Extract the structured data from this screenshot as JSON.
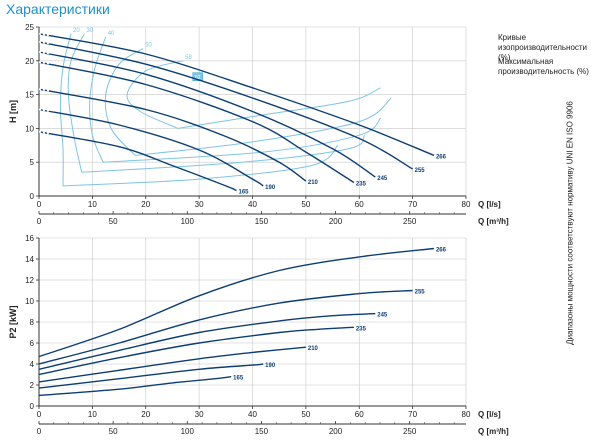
{
  "page": {
    "title": "Характеристики",
    "legend_iso_efficiency": [
      "Кривые",
      "изопроизводительности (%)"
    ],
    "legend_max_efficiency": [
      "Максимальная",
      "производительность (%)"
    ],
    "side_note": "Диапазоны мощности соответствуют нормативу UNI EN ISO 9906",
    "colors": {
      "title": "#1f8fc9",
      "curve": "#0d3e73",
      "label": "#0d3e73",
      "efficiency": "#7ec4e4",
      "grid": "#c8c8c8",
      "axis": "#333333"
    }
  },
  "chart_data": [
    {
      "type": "line",
      "id": "head",
      "ylabel": "H [m]",
      "xlabel_primary": "Q [l/s]",
      "xlabel_secondary": "Q [m³/h]",
      "xlim": [
        0,
        80
      ],
      "ylim": [
        0,
        25
      ],
      "x_ticks": [
        "0",
        "10",
        "20",
        "30",
        "40",
        "50",
        "60",
        "70",
        "80"
      ],
      "y_ticks": [
        "0",
        "5",
        "10",
        "15",
        "20",
        "25"
      ],
      "secondary_ticks": [
        "0",
        "50",
        "100",
        "150",
        "200",
        "250"
      ],
      "grid": true,
      "series": [
        {
          "name": "266",
          "x": [
            0,
            20,
            40,
            60,
            74
          ],
          "y": [
            24.0,
            21.0,
            16.0,
            10.5,
            6.0
          ]
        },
        {
          "name": "255",
          "x": [
            0,
            20,
            40,
            60,
            70
          ],
          "y": [
            22.8,
            19.5,
            14.5,
            8.5,
            4.0
          ]
        },
        {
          "name": "245",
          "x": [
            0,
            20,
            40,
            55,
            63
          ],
          "y": [
            21.3,
            18.0,
            12.5,
            7.0,
            2.8
          ]
        },
        {
          "name": "235",
          "x": [
            0,
            20,
            40,
            50,
            59
          ],
          "y": [
            19.8,
            16.5,
            11.0,
            6.5,
            2.0
          ]
        },
        {
          "name": "210",
          "x": [
            0,
            20,
            35,
            45,
            50
          ],
          "y": [
            15.8,
            12.8,
            8.8,
            5.0,
            2.2
          ]
        },
        {
          "name": "190",
          "x": [
            0,
            15,
            30,
            40,
            42
          ],
          "y": [
            12.8,
            10.5,
            6.8,
            2.5,
            1.5
          ]
        },
        {
          "name": "165",
          "x": [
            0,
            15,
            25,
            35,
            37
          ],
          "y": [
            9.5,
            7.3,
            4.5,
            1.5,
            0.8
          ]
        }
      ],
      "efficiency_curves": [
        {
          "label": "20",
          "x": [
            6.0,
            4.5,
            4.0,
            4.5,
            4.5
          ],
          "y": [
            24.0,
            19.0,
            13.0,
            7.0,
            1.5
          ]
        },
        {
          "label": "30",
          "x": [
            8.5,
            6.0,
            5.5,
            6.5,
            8.0
          ],
          "y": [
            24.0,
            20.0,
            15.0,
            9.0,
            3.5
          ]
        },
        {
          "label": "40",
          "x": [
            12.5,
            10.5,
            9.5,
            10.0,
            12.0
          ],
          "y": [
            23.5,
            19.0,
            14.0,
            9.0,
            5.0
          ]
        },
        {
          "label": "50",
          "x": [
            19.5,
            15.0,
            12.5,
            13.5,
            18.0
          ],
          "y": [
            21.8,
            19.5,
            15.0,
            10.0,
            6.0
          ]
        },
        {
          "label": "58",
          "x": [
            27.0,
            20.0,
            16.5,
            19.0,
            26.0
          ],
          "y": [
            20.0,
            18.5,
            15.0,
            12.5,
            10.0
          ]
        }
      ],
      "efficiency_tail_curves": [
        {
          "x": [
            4.5,
            30.0,
            51.0,
            56.0
          ],
          "y": [
            1.5,
            2.5,
            4.5,
            7.5
          ]
        },
        {
          "x": [
            8.0,
            38.0,
            58.0,
            61.0
          ],
          "y": [
            3.5,
            5.0,
            7.0,
            9.0
          ]
        },
        {
          "x": [
            12.0,
            42.0,
            60.0,
            64.0
          ],
          "y": [
            5.0,
            6.5,
            9.0,
            11.5
          ]
        },
        {
          "x": [
            18.0,
            40.0,
            60.0,
            66.0
          ],
          "y": [
            6.0,
            8.0,
            11.0,
            14.5
          ]
        },
        {
          "x": [
            26.0,
            42.0,
            58.0,
            64.0
          ],
          "y": [
            10.0,
            12.0,
            14.0,
            16.0
          ]
        }
      ],
      "max_efficiency_badge": {
        "label": "62",
        "x": 29,
        "y": 17.5
      }
    },
    {
      "type": "line",
      "id": "power",
      "ylabel": "P2 [kW]",
      "xlabel_primary": "Q [l/s]",
      "xlabel_secondary": "Q [m³/h]",
      "xlim": [
        0,
        80
      ],
      "ylim": [
        0,
        16
      ],
      "x_ticks": [
        "0",
        "10",
        "20",
        "30",
        "40",
        "50",
        "60",
        "70",
        "80"
      ],
      "y_ticks": [
        "0",
        "2",
        "4",
        "6",
        "8",
        "10",
        "12",
        "14",
        "16"
      ],
      "secondary_ticks": [
        "0",
        "50",
        "100",
        "150",
        "200",
        "250"
      ],
      "grid": true,
      "series": [
        {
          "name": "266",
          "x": [
            0,
            15,
            30,
            45,
            60,
            74
          ],
          "y": [
            4.7,
            7.3,
            10.5,
            12.9,
            14.2,
            15.0
          ]
        },
        {
          "name": "255",
          "x": [
            0,
            15,
            30,
            45,
            60,
            70
          ],
          "y": [
            4.0,
            6.0,
            8.2,
            9.8,
            10.7,
            11.0
          ]
        },
        {
          "name": "245",
          "x": [
            0,
            15,
            30,
            45,
            55,
            63
          ],
          "y": [
            3.5,
            5.3,
            7.0,
            8.1,
            8.6,
            8.8
          ]
        },
        {
          "name": "235",
          "x": [
            0,
            15,
            30,
            45,
            52,
            59
          ],
          "y": [
            3.0,
            4.6,
            6.0,
            7.0,
            7.3,
            7.5
          ]
        },
        {
          "name": "210",
          "x": [
            0,
            15,
            30,
            40,
            50
          ],
          "y": [
            2.3,
            3.4,
            4.5,
            5.1,
            5.6
          ]
        },
        {
          "name": "190",
          "x": [
            0,
            15,
            30,
            40,
            42
          ],
          "y": [
            1.7,
            2.6,
            3.5,
            3.9,
            4.0
          ]
        },
        {
          "name": "165",
          "x": [
            0,
            15,
            25,
            33,
            36
          ],
          "y": [
            1.0,
            1.6,
            2.2,
            2.6,
            2.8
          ]
        }
      ]
    }
  ]
}
